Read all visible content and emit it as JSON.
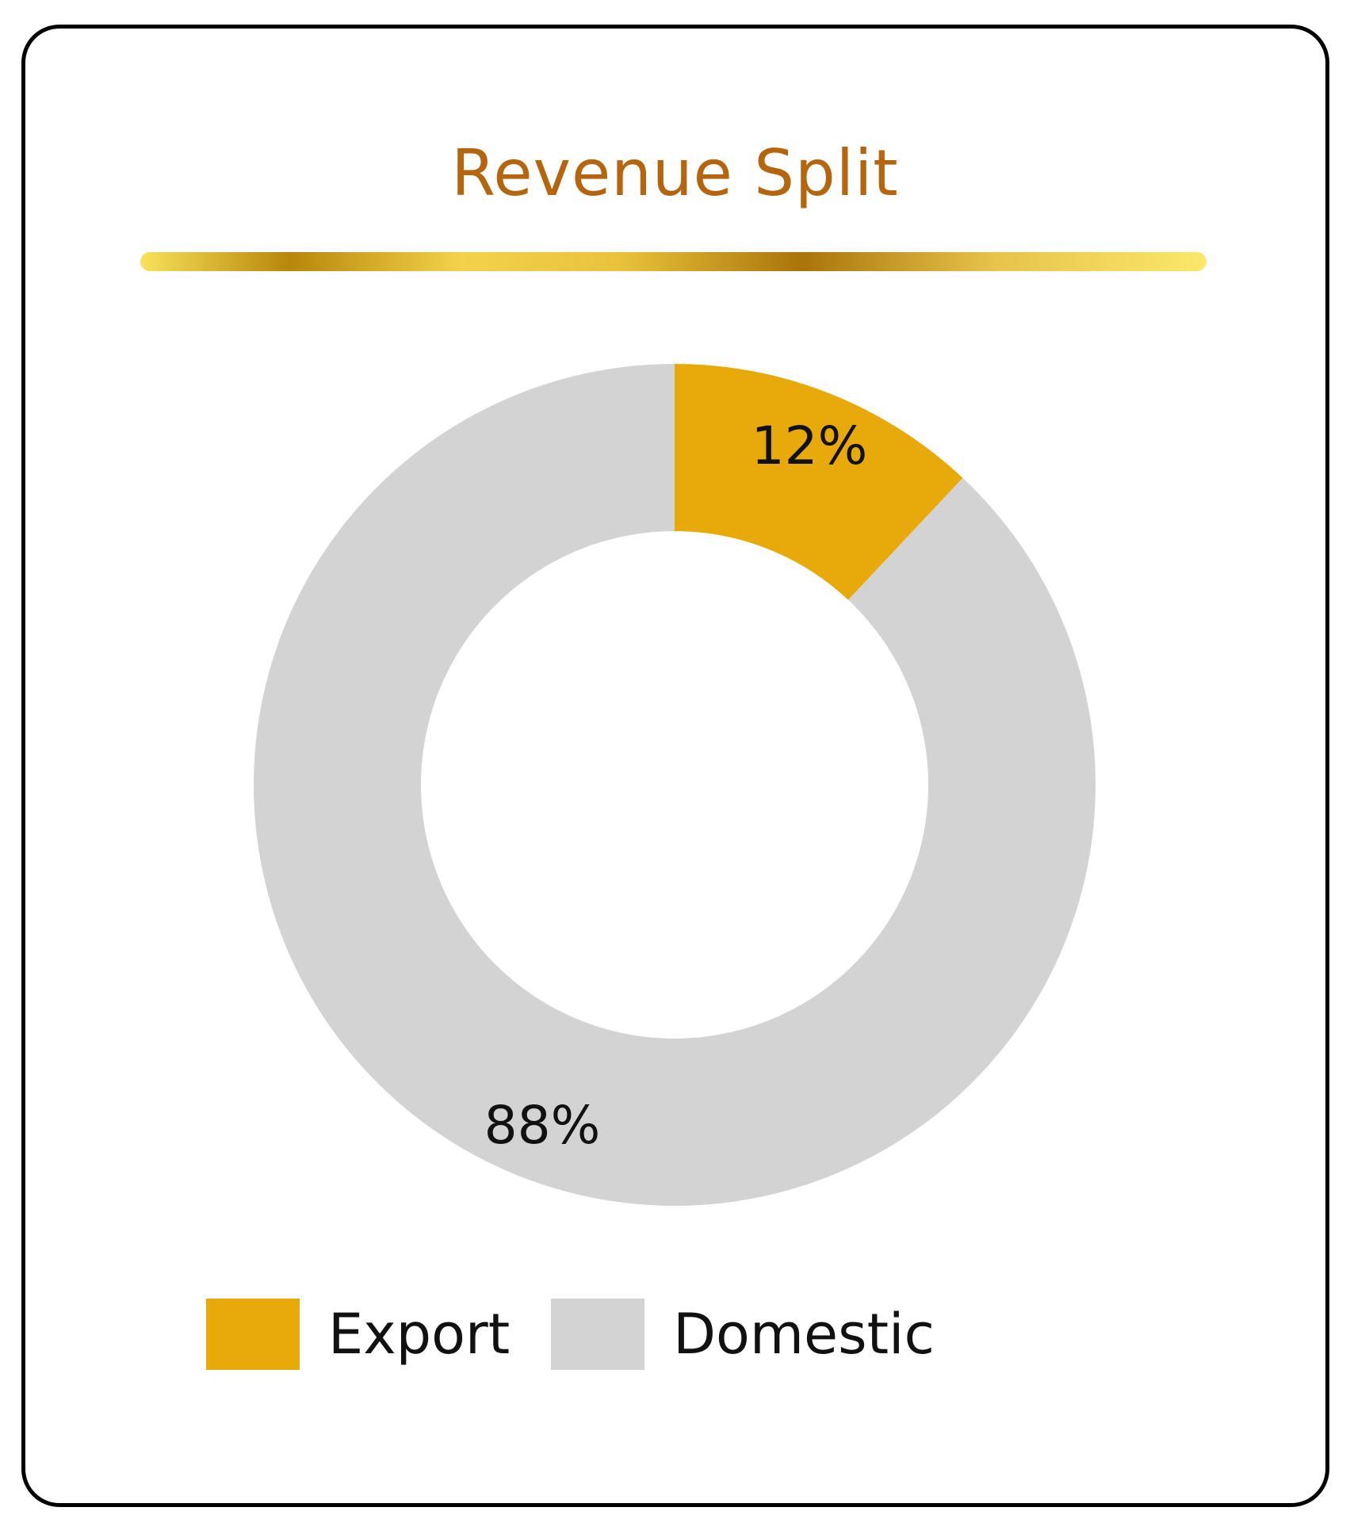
{
  "chart_data": {
    "type": "pie",
    "style": "donut",
    "title": "Revenue Split",
    "slices": [
      {
        "label": "Export",
        "value": 12,
        "display": "12%",
        "color": "#e8a90a"
      },
      {
        "label": "Domestic",
        "value": 88,
        "display": "88%",
        "color": "#d3d3d3"
      }
    ],
    "legend_placement": "bottom",
    "colors": {
      "title": "#b5650d",
      "border": "#000000"
    }
  }
}
